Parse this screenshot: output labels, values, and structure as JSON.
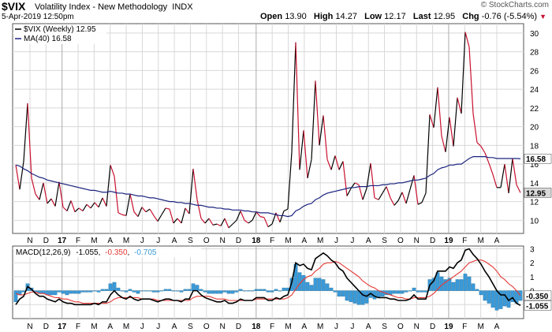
{
  "header": {
    "symbol": "$VIX",
    "description": "Volatility Index - New Methodology",
    "exchange": "INDX",
    "date": "5-Apr-2019 12:50pm",
    "brand": "© StockCharts.com",
    "quote": {
      "open_label": "Open",
      "open": "13.90",
      "high_label": "High",
      "high": "14.27",
      "low_label": "Low",
      "low": "12.17",
      "last_label": "Last",
      "last": "12.95",
      "chg_label": "Chg",
      "chg": "-0.76 (-5.54%)"
    }
  },
  "colors": {
    "price_up": "#000000",
    "price_down": "#c8102e",
    "ma": "#1a237e",
    "macd": "#000000",
    "signal": "#e53935",
    "histogram": "#3a9ad9",
    "grid": "#d8d8d8",
    "last_tag_bg": "#d9d9d9"
  },
  "chart_data": [
    {
      "type": "line",
      "legend_entries": [
        "$VIX (Weekly) 12.95",
        "MA(40) 16.58"
      ],
      "legend_placement": "top-left",
      "yticks": [
        10,
        12,
        14,
        16,
        18,
        20,
        22,
        24,
        26,
        28,
        30
      ],
      "ylim": [
        8.6,
        31
      ],
      "grid": true,
      "x_labels": [
        "N",
        "D",
        "17",
        "F",
        "M",
        "A",
        "M",
        "J",
        "J",
        "A",
        "S",
        "O",
        "N",
        "D",
        "18",
        "F",
        "M",
        "A",
        "M",
        "J",
        "J",
        "A",
        "S",
        "O",
        "N",
        "D",
        "19",
        "F",
        "M",
        "A"
      ],
      "last_price_tag": "12.95",
      "ma_tag": "16.58",
      "series": [
        {
          "name": "$VIX (Weekly) 12.95",
          "values": [
            15.9,
            13.3,
            16.3,
            22.5,
            14.5,
            12.8,
            12.2,
            14.0,
            11.8,
            12.3,
            11.5,
            14.1,
            11.4,
            11.0,
            12.1,
            10.9,
            11.3,
            11.0,
            11.7,
            11.3,
            11.9,
            11.4,
            12.4,
            11.5,
            15.9,
            14.7,
            10.8,
            10.6,
            10.5,
            12.8,
            10.9,
            10.4,
            11.4,
            10.9,
            11.2,
            10.5,
            9.9,
            10.6,
            11.3,
            11.2,
            9.7,
            10.2,
            9.7,
            11.3,
            10.7,
            15.5,
            12.2,
            10.2,
            9.7,
            10.2,
            9.5,
            9.6,
            9.4,
            10.2,
            9.2,
            9.6,
            10.0,
            11.0,
            10.0,
            9.7,
            10.0,
            10.9,
            10.4,
            10.3,
            9.3,
            9.6,
            10.8,
            9.8,
            11.0,
            11.2,
            17.3,
            29.0,
            15.4,
            19.6,
            14.5,
            16.5,
            24.9,
            18.0,
            21.2,
            16.5,
            15.4,
            16.9,
            15.4,
            16.3,
            12.6,
            13.4,
            14.0,
            13.8,
            12.2,
            13.4,
            16.1,
            12.4,
            12.2,
            12.9,
            13.6,
            12.4,
            11.6,
            12.1,
            13.0,
            11.8,
            13.3,
            14.8,
            11.7,
            11.9,
            12.9,
            21.3,
            19.9,
            24.2,
            19.0,
            17.3,
            21.0,
            17.9,
            23.1,
            21.4,
            30.1,
            28.5,
            21.4,
            18.3,
            17.9,
            17.2,
            16.1,
            14.9,
            13.5,
            13.5,
            16.0,
            12.9,
            16.6,
            13.8,
            12.95
          ]
        },
        {
          "name": "MA(40) 16.58",
          "values": [
            15.9,
            15.8,
            15.5,
            15.3,
            15.0,
            14.8,
            14.6,
            14.5,
            14.3,
            14.2,
            14.1,
            14.0,
            13.9,
            13.8,
            13.7,
            13.6,
            13.5,
            13.4,
            13.3,
            13.2,
            13.2,
            13.1,
            13.0,
            13.0,
            13.1,
            13.0,
            12.9,
            12.9,
            12.8,
            12.8,
            12.7,
            12.6,
            12.6,
            12.5,
            12.4,
            12.4,
            12.3,
            12.2,
            12.1,
            12.0,
            12.0,
            11.9,
            11.9,
            11.8,
            11.8,
            11.7,
            11.6,
            11.6,
            11.5,
            11.4,
            11.4,
            11.3,
            11.3,
            11.2,
            11.2,
            11.1,
            11.1,
            11.1,
            11.0,
            11.0,
            10.9,
            10.9,
            10.8,
            10.8,
            10.8,
            10.7,
            10.6,
            10.5,
            10.5,
            10.4,
            10.5,
            11.0,
            11.2,
            11.5,
            11.7,
            11.8,
            12.2,
            12.4,
            12.7,
            12.9,
            13.0,
            13.1,
            13.2,
            13.3,
            13.4,
            13.5,
            13.5,
            13.6,
            13.6,
            13.6,
            13.7,
            13.7,
            13.7,
            13.8,
            13.8,
            13.9,
            13.9,
            14.0,
            14.0,
            14.1,
            14.2,
            14.3,
            14.3,
            14.4,
            14.5,
            14.8,
            15.0,
            15.4,
            15.6,
            15.7,
            15.9,
            15.9,
            16.0,
            16.0,
            16.3,
            16.6,
            16.8,
            16.8,
            16.8,
            16.8,
            16.7,
            16.7,
            16.6,
            16.6,
            16.6,
            16.6,
            16.6,
            16.6,
            16.58
          ]
        }
      ]
    },
    {
      "type": "line",
      "legend_entries": [
        "MACD(12,26,9)",
        "-1.055",
        "-0.350",
        "-0.705"
      ],
      "legend_placement": "top-left",
      "yticks": [
        -1,
        0,
        1,
        2,
        3
      ],
      "ylim": [
        -2.0,
        3.2
      ],
      "grid": true,
      "x_labels": [
        "N",
        "D",
        "17",
        "F",
        "M",
        "A",
        "M",
        "J",
        "J",
        "A",
        "S",
        "O",
        "N",
        "D",
        "18",
        "F",
        "M",
        "A",
        "M",
        "J",
        "J",
        "A",
        "S",
        "O",
        "N",
        "D",
        "19",
        "F",
        "M",
        "A"
      ],
      "macd_tag": "-1.055",
      "signal_tag": "-0.350",
      "series": [
        {
          "name": "MACD(12,26,9)",
          "values": [
            -1.0,
            -0.6,
            -0.4,
            0.3,
            0.1,
            -0.2,
            -0.4,
            -0.4,
            -0.6,
            -0.7,
            -0.8,
            -0.6,
            -0.8,
            -0.9,
            -0.9,
            -1.0,
            -1.0,
            -1.0,
            -1.0,
            -1.0,
            -0.9,
            -1.0,
            -0.8,
            -0.8,
            -0.3,
            0.0,
            -0.3,
            -0.5,
            -0.6,
            -0.4,
            -0.6,
            -0.7,
            -0.6,
            -0.6,
            -0.6,
            -0.7,
            -0.8,
            -0.7,
            -0.6,
            -0.6,
            -0.7,
            -0.7,
            -0.8,
            -0.6,
            -0.6,
            0.0,
            0.0,
            -0.3,
            -0.5,
            -0.6,
            -0.7,
            -0.8,
            -0.8,
            -0.7,
            -0.9,
            -0.9,
            -0.8,
            -0.6,
            -0.7,
            -0.7,
            -0.7,
            -0.5,
            -0.5,
            -0.5,
            -0.7,
            -0.7,
            -0.5,
            -0.6,
            -0.4,
            -0.3,
            0.6,
            2.0,
            1.8,
            1.9,
            1.6,
            1.5,
            2.3,
            2.5,
            2.7,
            2.5,
            2.2,
            2.0,
            1.6,
            1.4,
            0.9,
            0.6,
            0.3,
            0.0,
            -0.3,
            -0.4,
            -0.2,
            -0.4,
            -0.5,
            -0.5,
            -0.5,
            -0.6,
            -0.6,
            -0.7,
            -0.7,
            -0.7,
            -0.6,
            -0.3,
            -0.6,
            -0.6,
            -0.6,
            0.4,
            0.7,
            1.4,
            1.4,
            1.4,
            1.7,
            1.6,
            2.0,
            2.2,
            2.9,
            3.0,
            2.6,
            2.3,
            1.9,
            1.4,
            1.0,
            0.5,
            0.0,
            -0.3,
            -0.3,
            -0.7,
            -0.5,
            -0.9,
            -1.055
          ]
        },
        {
          "name": "-0.350",
          "values": [
            -0.2,
            -0.3,
            -0.3,
            -0.2,
            -0.1,
            -0.1,
            -0.2,
            -0.2,
            -0.3,
            -0.4,
            -0.5,
            -0.5,
            -0.6,
            -0.6,
            -0.7,
            -0.8,
            -0.8,
            -0.9,
            -0.9,
            -0.9,
            -0.9,
            -0.9,
            -0.9,
            -0.9,
            -0.8,
            -0.6,
            -0.5,
            -0.5,
            -0.5,
            -0.5,
            -0.5,
            -0.5,
            -0.6,
            -0.6,
            -0.6,
            -0.6,
            -0.7,
            -0.7,
            -0.7,
            -0.7,
            -0.7,
            -0.7,
            -0.7,
            -0.7,
            -0.7,
            -0.5,
            -0.4,
            -0.4,
            -0.4,
            -0.4,
            -0.5,
            -0.6,
            -0.6,
            -0.6,
            -0.7,
            -0.7,
            -0.7,
            -0.7,
            -0.7,
            -0.7,
            -0.7,
            -0.6,
            -0.6,
            -0.6,
            -0.6,
            -0.6,
            -0.6,
            -0.6,
            -0.6,
            -0.5,
            -0.3,
            0.1,
            0.5,
            0.8,
            1.0,
            1.1,
            1.4,
            1.6,
            1.9,
            2.0,
            2.0,
            2.1,
            2.0,
            1.8,
            1.6,
            1.4,
            1.2,
            1.0,
            0.7,
            0.5,
            0.3,
            0.2,
            0.0,
            -0.1,
            -0.2,
            -0.3,
            -0.4,
            -0.5,
            -0.5,
            -0.6,
            -0.6,
            -0.5,
            -0.5,
            -0.5,
            -0.5,
            -0.4,
            -0.2,
            0.1,
            0.4,
            0.6,
            0.8,
            1.0,
            1.2,
            1.4,
            1.7,
            2.0,
            2.1,
            2.2,
            2.2,
            2.1,
            1.9,
            1.7,
            1.4,
            1.0,
            0.8,
            0.5,
            0.3,
            0.0,
            -0.35
          ]
        },
        {
          "name": "-0.705",
          "kind": "histogram",
          "values": [
            -0.8,
            -0.3,
            -0.1,
            0.5,
            0.2,
            -0.1,
            -0.2,
            -0.2,
            -0.3,
            -0.3,
            -0.3,
            -0.1,
            -0.2,
            -0.3,
            -0.2,
            -0.2,
            -0.2,
            -0.1,
            -0.1,
            -0.1,
            0.0,
            -0.1,
            0.1,
            0.1,
            0.5,
            0.6,
            0.2,
            0.0,
            -0.1,
            0.1,
            -0.1,
            -0.2,
            0.0,
            0.0,
            0.0,
            -0.1,
            -0.1,
            0.0,
            0.1,
            0.1,
            0.0,
            0.0,
            -0.1,
            0.1,
            0.1,
            0.5,
            0.4,
            0.1,
            -0.1,
            -0.2,
            -0.2,
            -0.2,
            -0.2,
            -0.1,
            -0.2,
            -0.2,
            -0.1,
            0.1,
            0.0,
            0.0,
            0.0,
            0.1,
            0.1,
            0.1,
            -0.1,
            -0.1,
            0.1,
            0.0,
            0.2,
            0.2,
            0.9,
            1.9,
            1.3,
            1.1,
            0.6,
            0.4,
            0.9,
            0.9,
            0.8,
            0.5,
            0.2,
            -0.1,
            -0.4,
            -0.4,
            -0.7,
            -0.8,
            -0.9,
            -1.0,
            -1.0,
            -0.9,
            -0.5,
            -0.6,
            -0.5,
            -0.4,
            -0.3,
            -0.3,
            -0.2,
            -0.2,
            -0.2,
            -0.1,
            0.0,
            0.2,
            -0.1,
            -0.1,
            -0.1,
            0.8,
            0.9,
            1.3,
            1.0,
            0.8,
            0.9,
            0.6,
            0.8,
            0.8,
            1.2,
            1.0,
            0.5,
            0.1,
            -0.3,
            -0.7,
            -0.9,
            -1.2,
            -1.4,
            -1.3,
            -1.1,
            -1.2,
            -0.8,
            -0.9,
            -0.705
          ]
        }
      ]
    }
  ]
}
